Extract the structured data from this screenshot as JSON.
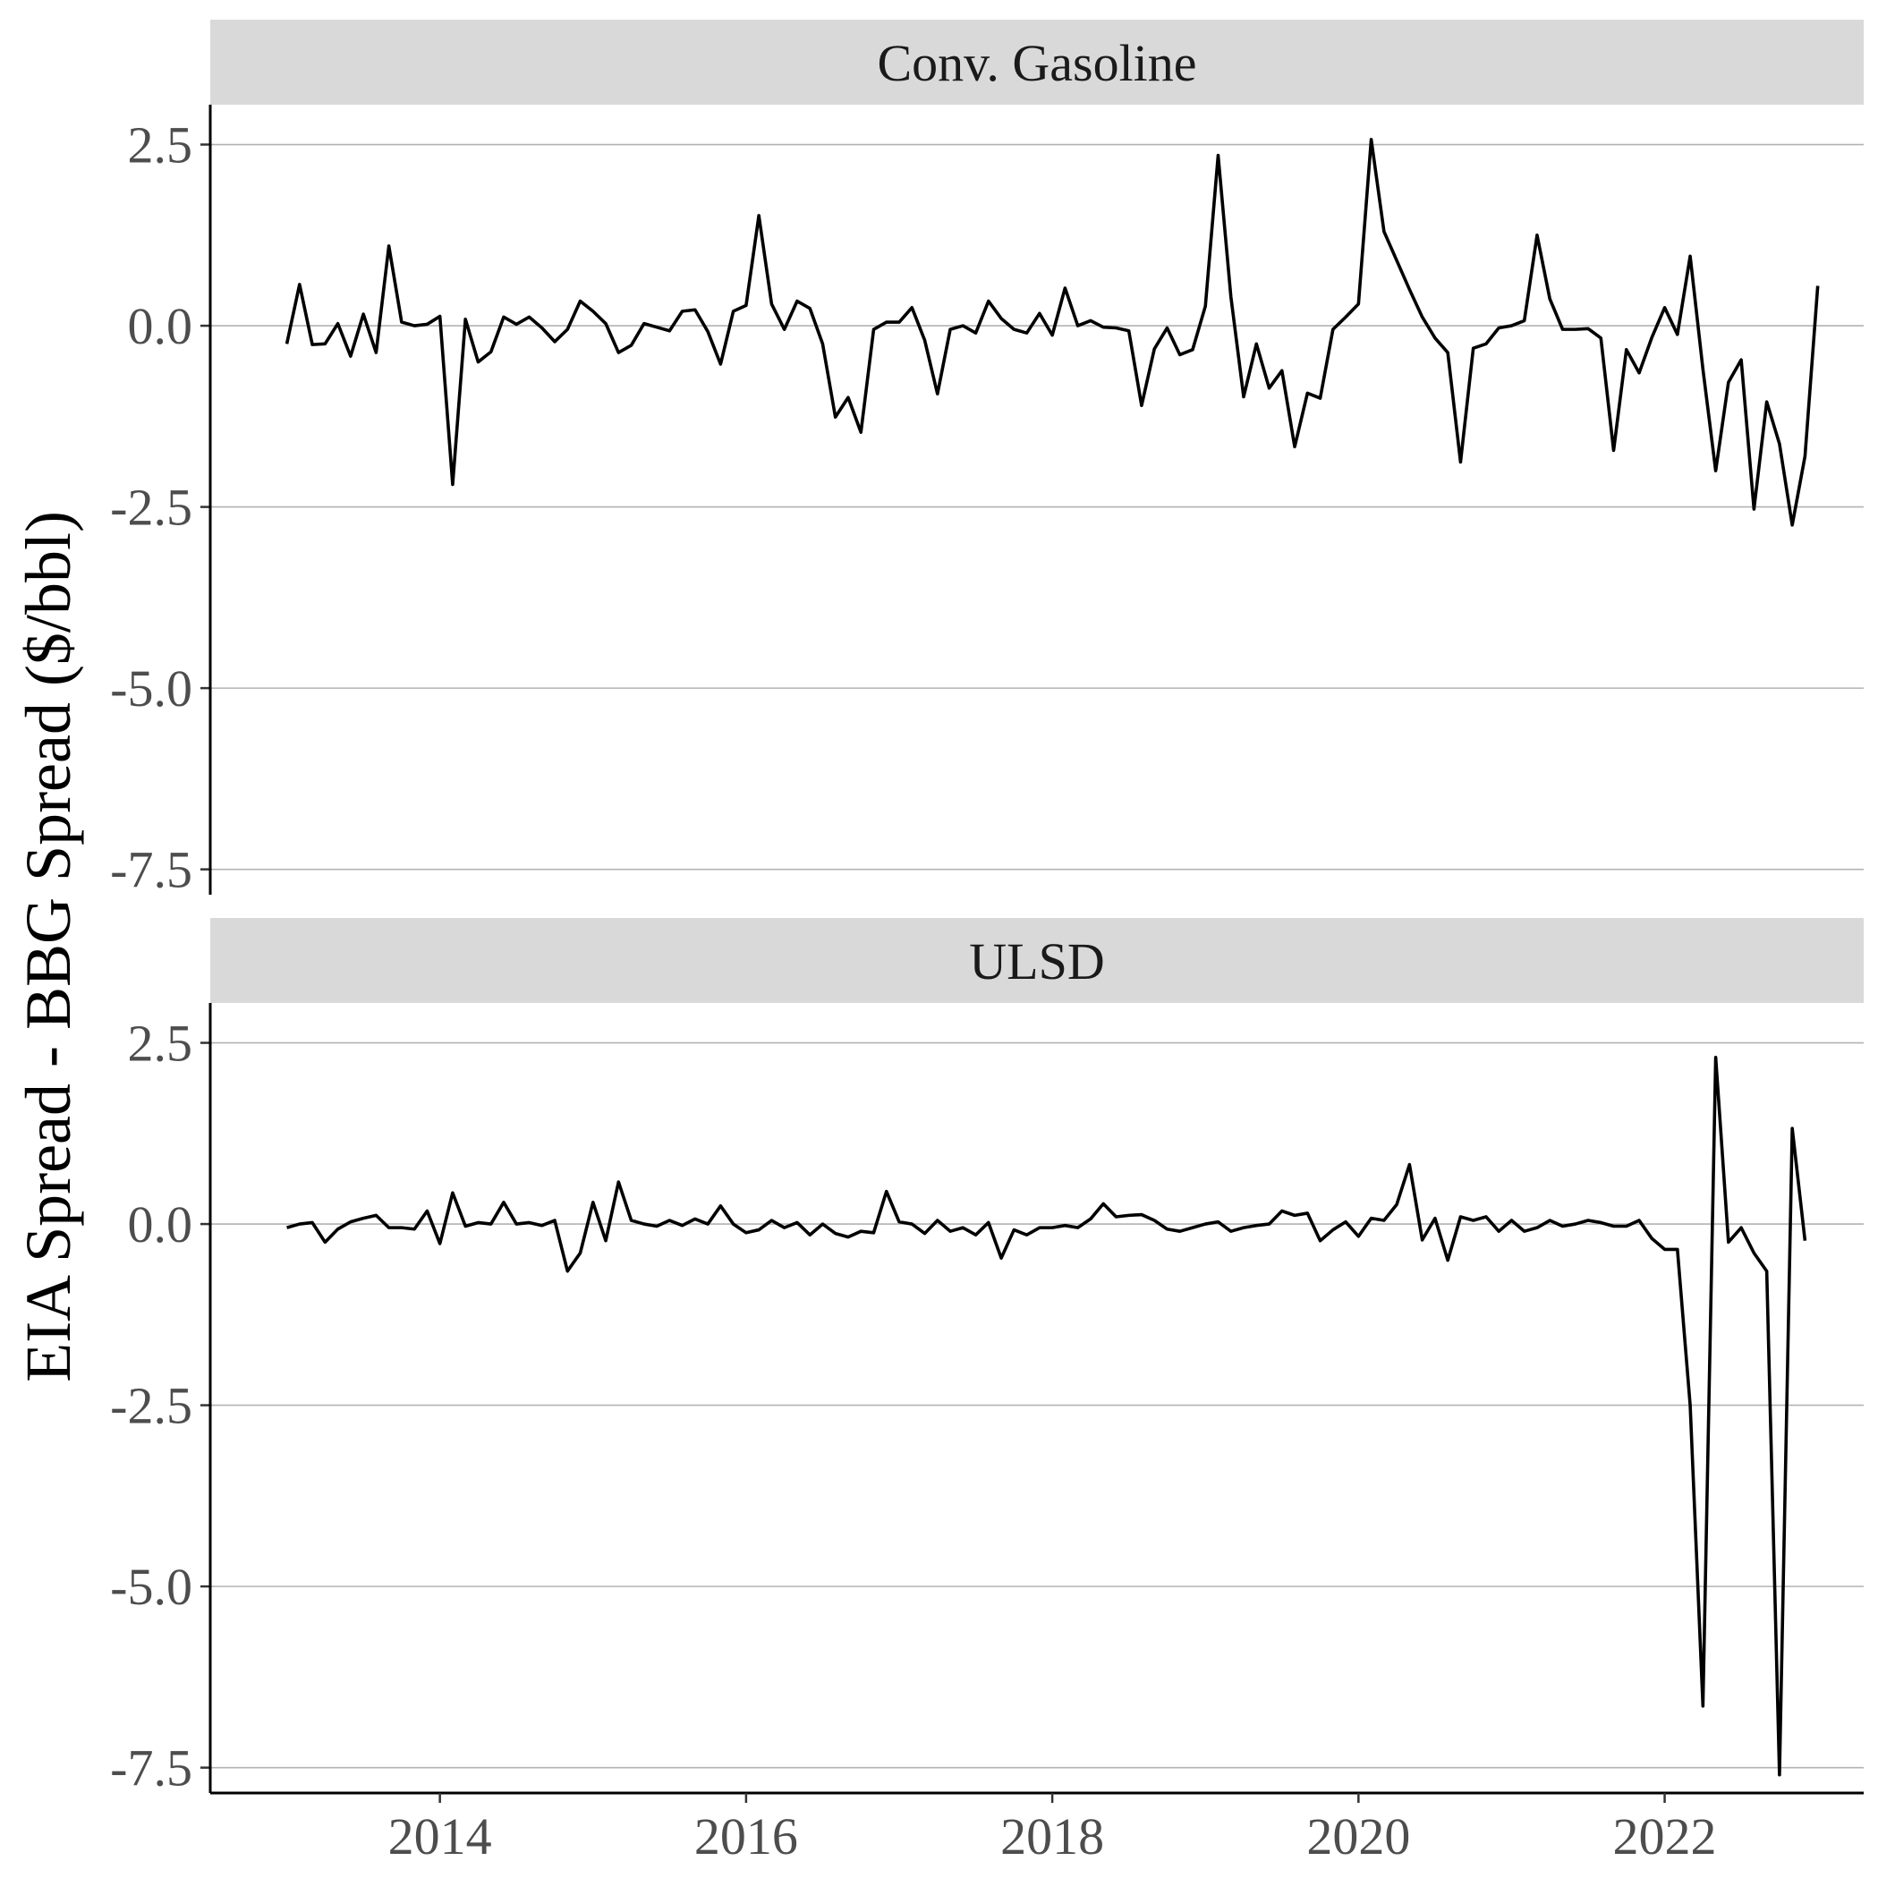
{
  "chart_data": {
    "type": "line",
    "ylabel": "EIA Spread - BBG Spread ($/bbl)",
    "xlabel": "",
    "x_ticks": [
      2014,
      2016,
      2018,
      2020,
      2022
    ],
    "y_ticks": [
      2.5,
      0.0,
      -2.5,
      -5.0,
      -7.5
    ],
    "y_tick_labels": [
      "2.5",
      "0.0",
      "-2.5",
      "-5.0",
      "-7.5"
    ],
    "xlim": [
      2012.5,
      2023.3
    ],
    "ylim": [
      -7.85,
      3.05
    ],
    "grid": true,
    "x_start": "2013-01",
    "x_step_months": 1,
    "panels": [
      {
        "strip": "Conv. Gasoline",
        "series": [
          {
            "values": [
              -0.25,
              0.57,
              -0.26,
              -0.25,
              0.03,
              -0.42,
              0.16,
              -0.37,
              1.1,
              0.05,
              0.0,
              0.02,
              0.13,
              -2.19,
              0.09,
              -0.5,
              -0.36,
              0.12,
              0.02,
              0.12,
              -0.03,
              -0.22,
              -0.05,
              0.34,
              0.2,
              0.03,
              -0.37,
              -0.27,
              0.03,
              -0.02,
              -0.07,
              0.2,
              0.22,
              -0.08,
              -0.53,
              0.2,
              0.28,
              1.52,
              0.3,
              -0.05,
              0.34,
              0.24,
              -0.25,
              -1.26,
              -0.99,
              -1.47,
              -0.05,
              0.05,
              0.05,
              0.25,
              -0.2,
              -0.94,
              -0.05,
              0.0,
              -0.1,
              0.34,
              0.1,
              -0.05,
              -0.1,
              0.17,
              -0.13,
              0.52,
              0.0,
              0.07,
              -0.02,
              -0.03,
              -0.07,
              -1.1,
              -0.32,
              -0.03,
              -0.4,
              -0.33,
              0.27,
              2.35,
              0.4,
              -0.98,
              -0.25,
              -0.86,
              -0.62,
              -1.67,
              -0.93,
              -1.0,
              -0.05,
              0.12,
              0.3,
              2.57,
              1.3,
              0.9,
              0.5,
              0.12,
              -0.17,
              -0.37,
              -1.88,
              -0.31,
              -0.25,
              -0.03,
              0.0,
              0.07,
              1.25,
              0.37,
              -0.05,
              -0.05,
              -0.04,
              -0.17,
              -1.72,
              -0.33,
              -0.65,
              -0.16,
              0.25,
              -0.12,
              0.96,
              -0.6,
              -2.0,
              -0.78,
              -0.47,
              -2.53,
              -1.05,
              -1.63,
              -2.75,
              -1.8,
              0.55
            ]
          }
        ]
      },
      {
        "strip": "ULSD",
        "series": [
          {
            "values": [
              -0.05,
              0.0,
              0.02,
              -0.25,
              -0.07,
              0.03,
              0.08,
              0.12,
              -0.05,
              -0.05,
              -0.07,
              0.18,
              -0.27,
              0.43,
              -0.03,
              0.02,
              0.0,
              0.3,
              0.0,
              0.02,
              -0.02,
              0.05,
              -0.65,
              -0.4,
              0.3,
              -0.23,
              0.58,
              0.05,
              0.0,
              -0.03,
              0.05,
              -0.02,
              0.07,
              0.0,
              0.25,
              0.0,
              -0.12,
              -0.08,
              0.05,
              -0.05,
              0.02,
              -0.15,
              0.0,
              -0.13,
              -0.18,
              -0.1,
              -0.12,
              0.45,
              0.03,
              0.0,
              -0.13,
              0.05,
              -0.1,
              -0.05,
              -0.15,
              0.02,
              -0.47,
              -0.08,
              -0.15,
              -0.05,
              -0.05,
              -0.02,
              -0.05,
              0.07,
              0.28,
              0.1,
              0.12,
              0.13,
              0.05,
              -0.07,
              -0.1,
              -0.05,
              0.0,
              0.03,
              -0.1,
              -0.05,
              -0.02,
              0.0,
              0.18,
              0.12,
              0.15,
              -0.23,
              -0.08,
              0.03,
              -0.17,
              0.08,
              0.05,
              0.27,
              0.82,
              -0.22,
              0.08,
              -0.5,
              0.1,
              0.05,
              0.1,
              -0.1,
              0.05,
              -0.1,
              -0.05,
              0.05,
              -0.03,
              0.0,
              0.05,
              0.02,
              -0.03,
              -0.03,
              0.05,
              -0.2,
              -0.35,
              -0.35,
              -2.5,
              -6.65,
              2.3,
              -0.25,
              -0.05,
              -0.4,
              -0.65,
              -7.6,
              1.32,
              -0.23
            ]
          }
        ]
      }
    ]
  }
}
